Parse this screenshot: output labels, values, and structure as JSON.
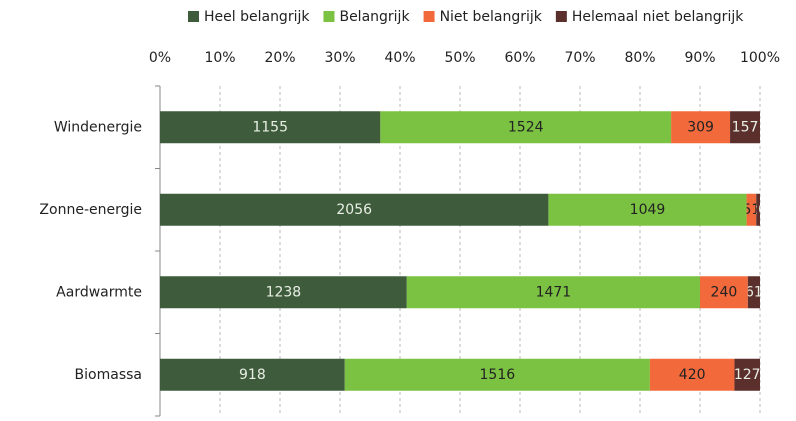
{
  "chart_data": {
    "type": "bar",
    "orientation": "horizontal",
    "stacked": "percent",
    "categories": [
      "Windenergie",
      "Zonne-energie",
      "Aardwarmte",
      "Biomassa"
    ],
    "series": [
      {
        "name": "Heel belangrijk",
        "color": "#3e5b3c",
        "values": [
          1155,
          2056,
          1238,
          918
        ]
      },
      {
        "name": "Belangrijk",
        "color": "#7cc242",
        "values": [
          1524,
          1049,
          1471,
          1516
        ]
      },
      {
        "name": "Niet belangrijk",
        "color": "#f26a3c",
        "values": [
          309,
          51,
          240,
          420
        ]
      },
      {
        "name": "Helemaal niet belangrijk",
        "color": "#5b2f2c",
        "values": [
          157,
          20,
          61,
          127
        ]
      }
    ],
    "xlim": [
      0,
      100
    ],
    "xticks": [
      {
        "value": 0,
        "label": "0%"
      },
      {
        "value": 10,
        "label": "10%"
      },
      {
        "value": 20,
        "label": "20%"
      },
      {
        "value": 30,
        "label": "30%"
      },
      {
        "value": 40,
        "label": "40%"
      },
      {
        "value": 50,
        "label": "50%"
      },
      {
        "value": 60,
        "label": "60%"
      },
      {
        "value": 70,
        "label": "70%"
      },
      {
        "value": 80,
        "label": "80%"
      },
      {
        "value": 90,
        "label": "90%"
      },
      {
        "value": 100,
        "label": "100%"
      }
    ],
    "grid": true,
    "legend": "top"
  }
}
